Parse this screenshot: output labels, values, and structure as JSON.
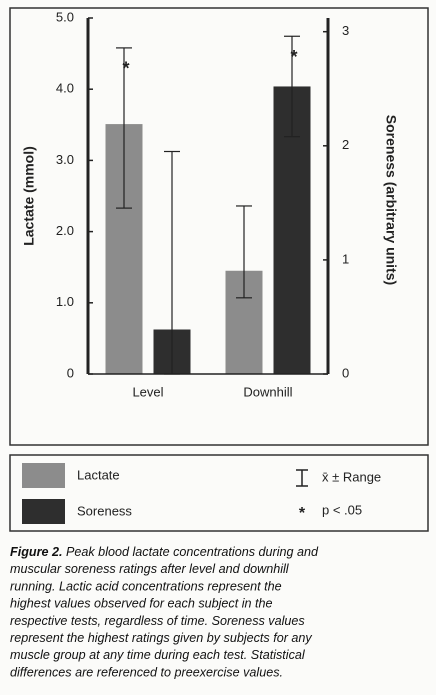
{
  "chart_data": {
    "type": "bar",
    "categories": [
      "Level",
      "Downhill"
    ],
    "y_label": "Lactate (mmol)",
    "y2_label": "Soreness (arbitrary units)",
    "ylim": [
      0,
      5.0
    ],
    "yticks": [
      0,
      {
        "value": 1,
        "label": "1.0"
      },
      {
        "value": 2,
        "label": "2.0"
      },
      {
        "value": 3,
        "label": "3.0"
      },
      {
        "value": 4,
        "label": "4.0"
      },
      {
        "value": 5,
        "label": "5.0"
      }
    ],
    "y2lim": [
      0,
      3.12
    ],
    "y2ticks": [
      0,
      1,
      2,
      3
    ],
    "series": [
      {
        "name": "Lactate",
        "color": "#8c8c8c",
        "values": [
          3.51,
          1.45
        ],
        "range_low": [
          2.33,
          1.07
        ],
        "range_high": [
          4.58,
          2.36
        ],
        "markers": [
          "*",
          null
        ]
      },
      {
        "name": "Soreness",
        "color": "#2e2e2e",
        "axis": "y2",
        "values": [
          0.39,
          2.52
        ],
        "range_low": [
          0,
          2.08
        ],
        "range_high": [
          1.95,
          2.96
        ],
        "markers": [
          null,
          "*"
        ]
      }
    ],
    "legend_notes": [
      {
        "symbol": "I",
        "text": "x̄ ± Range"
      },
      {
        "symbol": "*",
        "text": "p < .05"
      }
    ],
    "caption": {
      "label": "Figure 2.",
      "lines": [
        " Peak blood lactate concentrations during and",
        "muscular soreness ratings after level and downhill",
        "running. Lactic acid concentrations represent the",
        "highest values observed for each subject in the",
        "respective tests, regardless of time. Soreness values",
        "represent the highest ratings given by subjects for any",
        "muscle group at any time during each test. Statistical",
        "differences are referenced to preexercise values."
      ]
    }
  }
}
